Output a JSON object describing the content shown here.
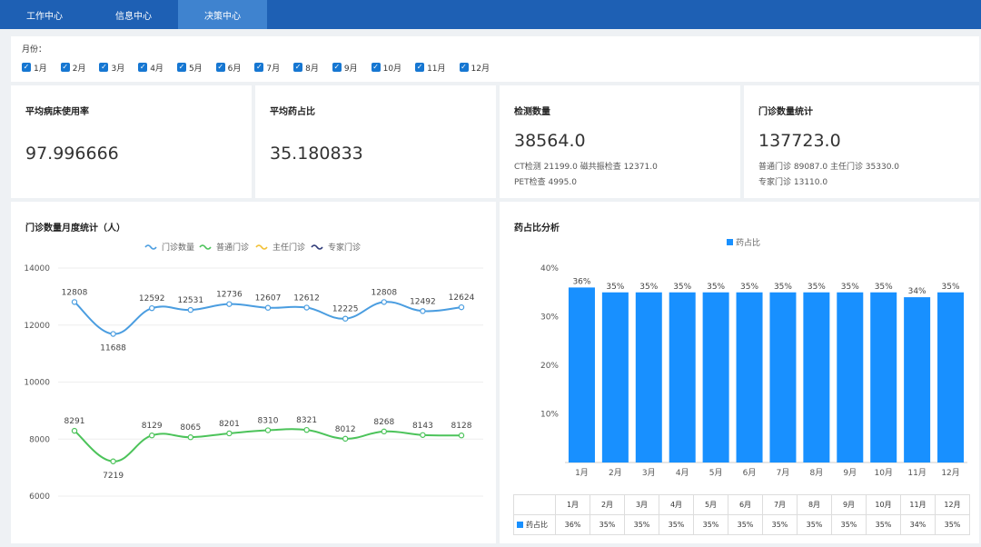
{
  "nav": {
    "tabs": [
      "工作中心",
      "信息中心",
      "决策中心"
    ],
    "active": 2
  },
  "filter": {
    "label": "月份：",
    "months": [
      "1月",
      "2月",
      "3月",
      "4月",
      "5月",
      "6月",
      "7月",
      "8月",
      "9月",
      "10月",
      "11月",
      "12月"
    ],
    "all_checked": true
  },
  "kpis": {
    "bed_usage": {
      "title": "平均病床使用率",
      "value": "97.996666"
    },
    "drug_ratio": {
      "title": "平均药占比",
      "value": "35.180833"
    },
    "tests": {
      "title": "检测数量",
      "value": "38564.0",
      "line1": "CT检测  21199.0   磁共振检查  12371.0",
      "line2": "PET检查  4995.0"
    },
    "outpatient": {
      "title": "门诊数量统计",
      "value": "137723.0",
      "line1": "普通门诊  89087.0   主任门诊  35330.0",
      "line2": "专家门诊  13110.0"
    }
  },
  "colors": {
    "nav": "#1e60b4",
    "nav_active": "#3f83cf",
    "line_total": "#4a9de0",
    "line_normal": "#4cc35a",
    "line_director": "#f2c033",
    "line_expert": "#2f3a78",
    "bar": "#1890ff"
  },
  "left_panel": {
    "title": "门诊数量月度统计（人）"
  },
  "right_panel": {
    "title": "药占比分析"
  },
  "chart_data": [
    {
      "type": "line",
      "title": "门诊数量月度统计（人）",
      "legend": [
        "门诊数量",
        "普通门诊",
        "主任门诊",
        "专家门诊"
      ],
      "legend_position": "top-center",
      "ylim": [
        5000,
        14000
      ],
      "yticks": [
        6000,
        8000,
        10000,
        12000,
        14000
      ],
      "series": [
        {
          "name": "门诊数量",
          "values": [
            12808,
            11688,
            12592,
            12531,
            12736,
            12607,
            12612,
            12225,
            12808,
            12492,
            12624
          ]
        },
        {
          "name": "普通门诊",
          "values": [
            8291,
            7219,
            8129,
            8065,
            8201,
            8310,
            8321,
            8012,
            8268,
            8143,
            8128
          ]
        }
      ],
      "grid": true,
      "smooth": true
    },
    {
      "type": "bar",
      "title": "药占比分析",
      "legend": [
        "药占比"
      ],
      "legend_position": "top-center",
      "categories": [
        "1月",
        "2月",
        "3月",
        "4月",
        "5月",
        "6月",
        "7月",
        "8月",
        "9月",
        "10月",
        "11月",
        "12月"
      ],
      "yticks": [
        "10%",
        "20%",
        "30%",
        "40%"
      ],
      "ylim": [
        0,
        40
      ],
      "series": [
        {
          "name": "药占比",
          "values": [
            36,
            35,
            35,
            35,
            35,
            35,
            35,
            35,
            35,
            35,
            34,
            35
          ]
        }
      ],
      "value_labels": [
        "36%",
        "35%",
        "35%",
        "35%",
        "35%",
        "35%",
        "35%",
        "35%",
        "35%",
        "35%",
        "34%",
        "35%"
      ]
    }
  ]
}
